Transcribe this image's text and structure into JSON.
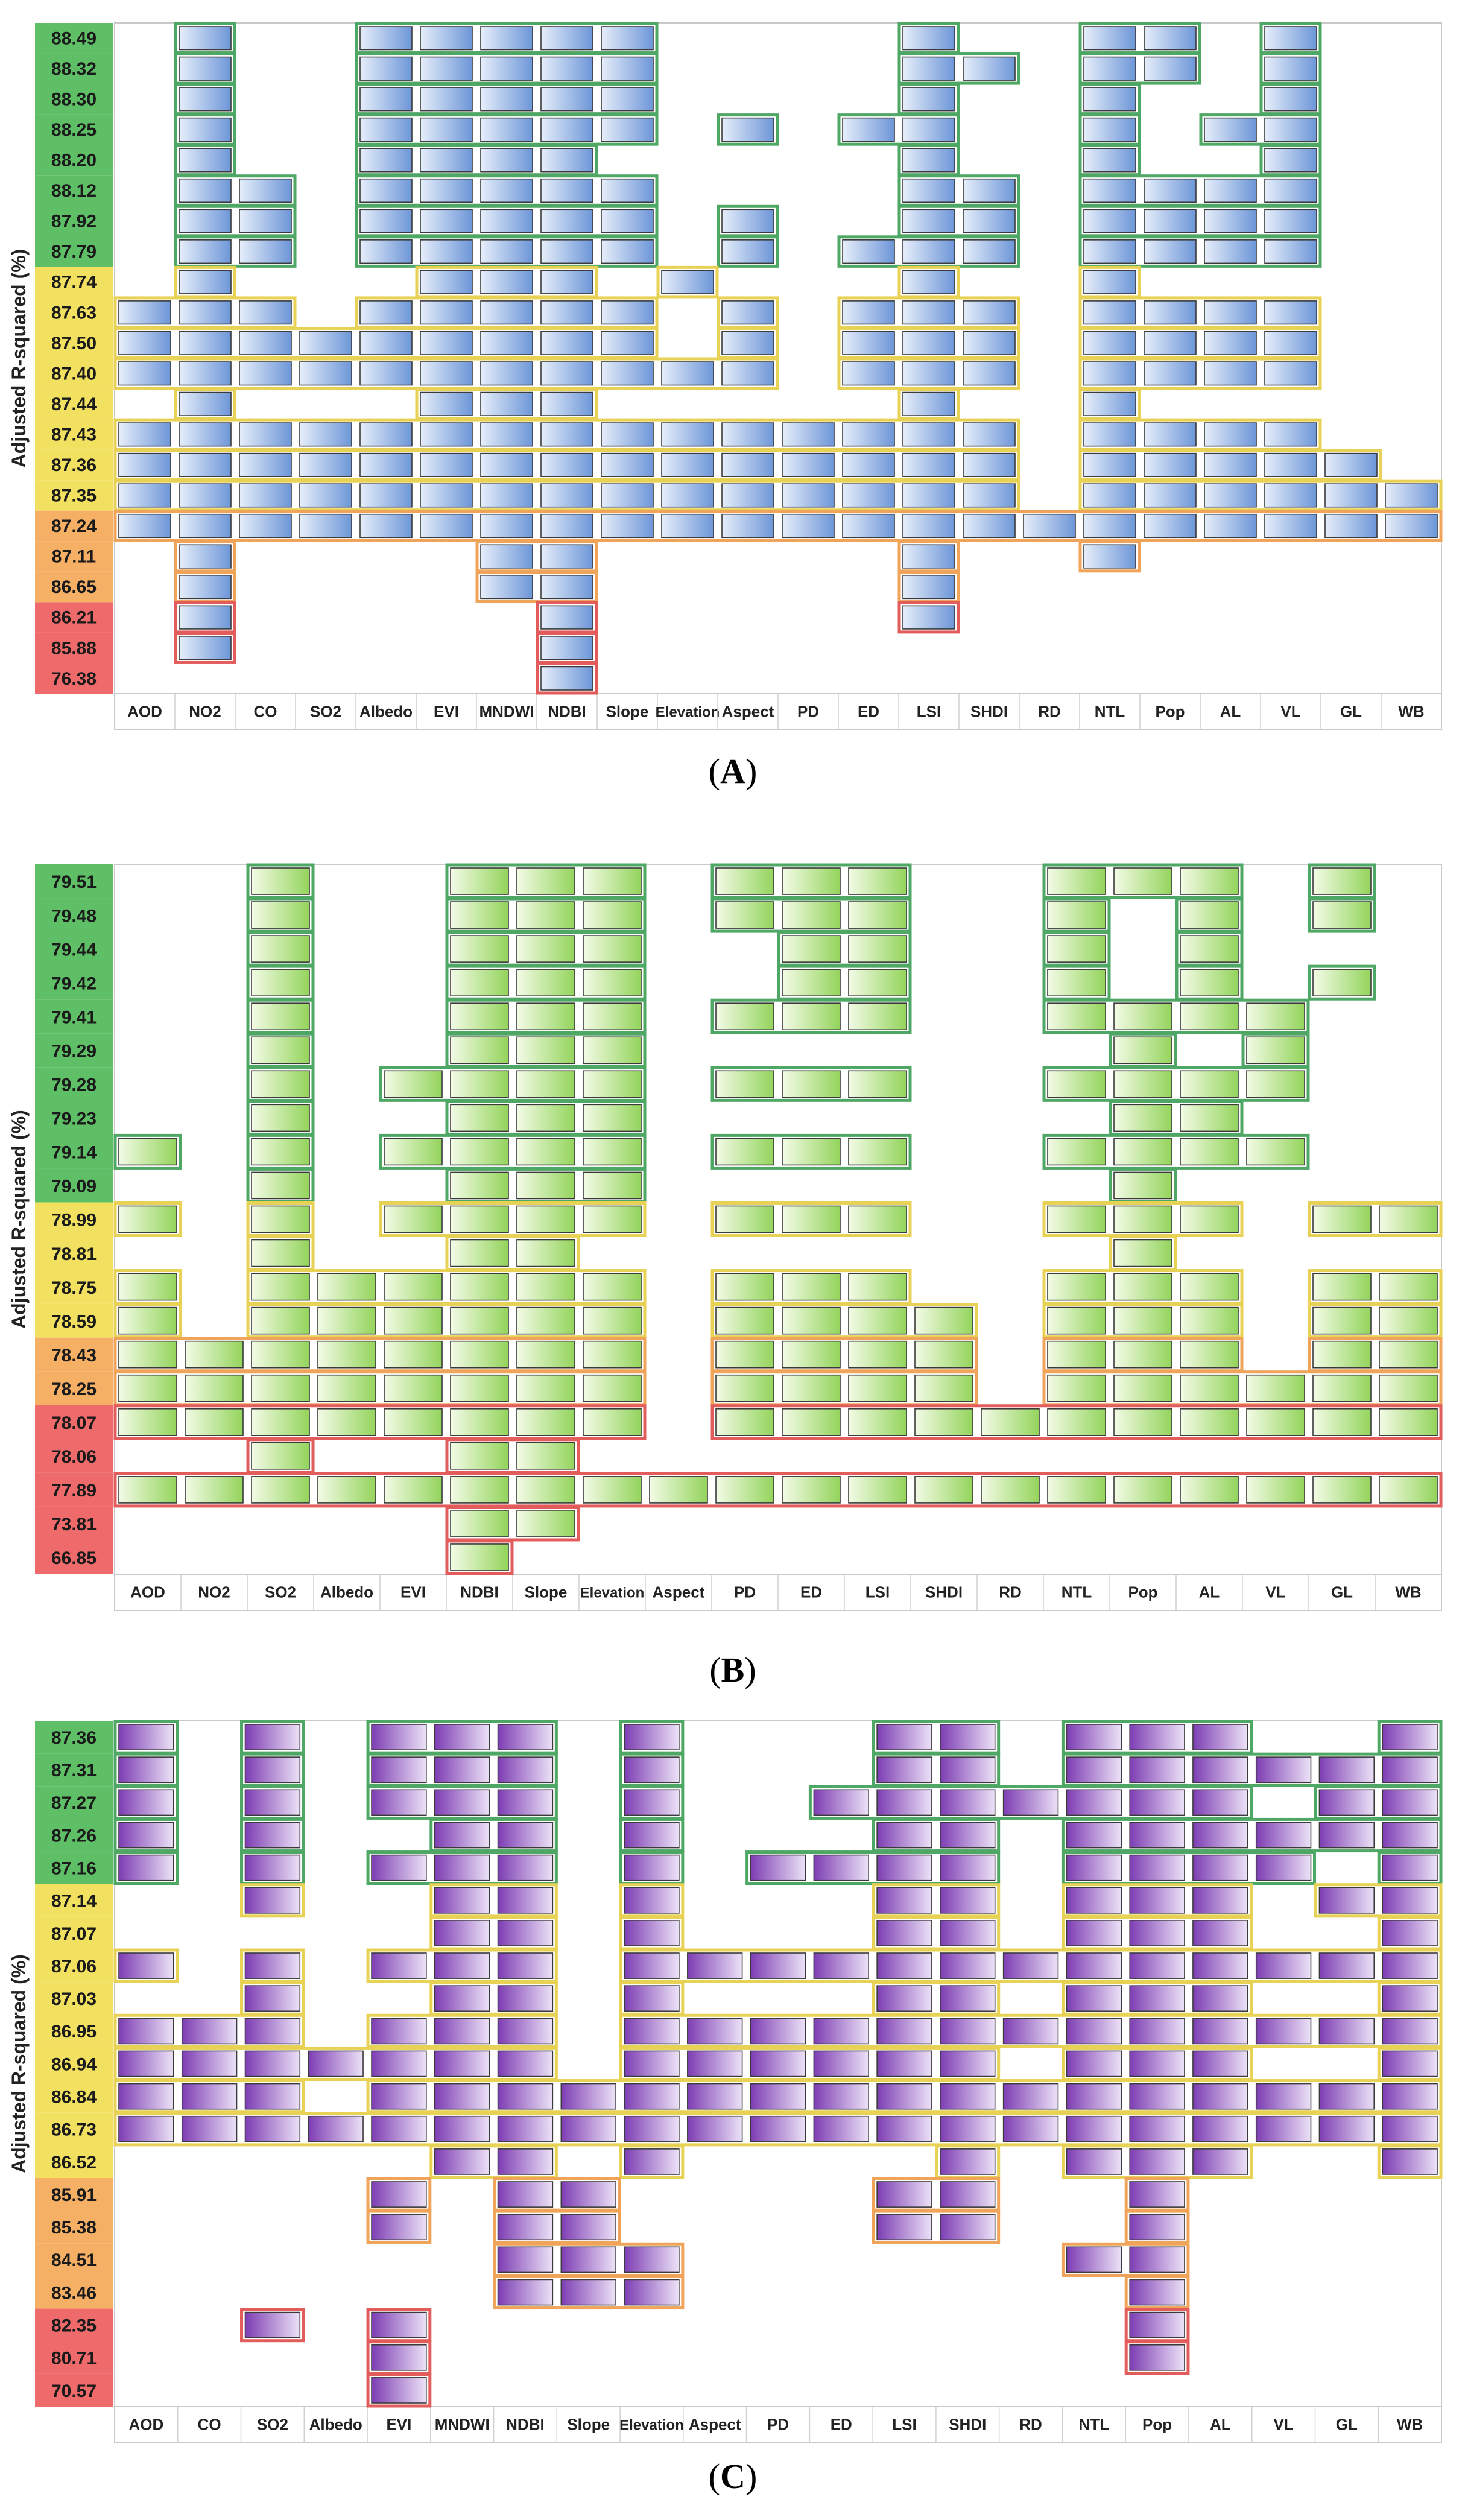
{
  "figure": {
    "ylabel": "Adjusted R-squared (%)",
    "panels": [
      "A",
      "B",
      "C"
    ]
  },
  "colors": {
    "axis_green": "#5fbf67",
    "axis_yellow": "#f2e160",
    "axis_orange": "#f6b066",
    "axis_red": "#ef6a6a",
    "cell_blue_light": "#e6eefa",
    "cell_blue_dark": "#6d96d8",
    "cell_green_light": "#f3fbe6",
    "cell_green_dark": "#94d45c",
    "cell_purple_light": "#ece2f7",
    "cell_purple_dark": "#7d3db3"
  },
  "chart_data": [
    {
      "type": "heatmap",
      "panel": "A",
      "title": "",
      "xlabel": "",
      "ylabel": "Adjusted R-squared (%)",
      "scheme": "blue",
      "categories": [
        "AOD",
        "NO2",
        "CO",
        "SO2",
        "Albedo",
        "EVI",
        "MNDWI",
        "NDBI",
        "Slope",
        "Elevation",
        "Aspect",
        "PD",
        "ED",
        "LSI",
        "SHDI",
        "RD",
        "NTL",
        "Pop",
        "AL",
        "VL",
        "GL",
        "WB"
      ],
      "rows": [
        "88.49",
        "88.32",
        "88.30",
        "88.25",
        "88.20",
        "88.12",
        "87.92",
        "87.79",
        "87.74",
        "87.63",
        "87.50",
        "87.40",
        "87.44",
        "87.43",
        "87.36",
        "87.35",
        "87.24",
        "87.11",
        "86.65",
        "86.21",
        "85.88",
        "76.38"
      ],
      "row_levels": [
        "green",
        "green",
        "green",
        "green",
        "green",
        "green",
        "green",
        "green",
        "yellow",
        "yellow",
        "yellow",
        "yellow",
        "yellow",
        "yellow",
        "yellow",
        "yellow",
        "orange",
        "orange",
        "orange",
        "red",
        "red",
        "red"
      ],
      "cells": [
        [
          1,
          4,
          5,
          6,
          7,
          8,
          13,
          16,
          17,
          19
        ],
        [
          1,
          4,
          5,
          6,
          7,
          8,
          13,
          14,
          16,
          17,
          19
        ],
        [
          1,
          4,
          5,
          6,
          7,
          8,
          13,
          16,
          19
        ],
        [
          1,
          4,
          5,
          6,
          7,
          8,
          10,
          12,
          13,
          16,
          18,
          19
        ],
        [
          1,
          4,
          5,
          6,
          7,
          13,
          16,
          19
        ],
        [
          1,
          2,
          4,
          5,
          6,
          7,
          8,
          13,
          14,
          16,
          17,
          18,
          19
        ],
        [
          1,
          2,
          4,
          5,
          6,
          7,
          8,
          10,
          13,
          14,
          16,
          17,
          18,
          19
        ],
        [
          1,
          2,
          4,
          5,
          6,
          7,
          8,
          10,
          12,
          13,
          14,
          16,
          17,
          18,
          19
        ],
        [
          1,
          5,
          6,
          7,
          9,
          13,
          16
        ],
        [
          0,
          1,
          2,
          4,
          5,
          6,
          7,
          8,
          10,
          12,
          13,
          14,
          16,
          17,
          18,
          19
        ],
        [
          0,
          1,
          2,
          3,
          4,
          5,
          6,
          7,
          8,
          10,
          12,
          13,
          14,
          16,
          17,
          18,
          19
        ],
        [
          0,
          1,
          2,
          3,
          4,
          5,
          6,
          7,
          8,
          9,
          10,
          12,
          13,
          14,
          16,
          17,
          18,
          19
        ],
        [
          1,
          5,
          6,
          7,
          13,
          16
        ],
        [
          0,
          1,
          2,
          3,
          4,
          5,
          6,
          7,
          8,
          9,
          10,
          11,
          12,
          13,
          14,
          16,
          17,
          18,
          19
        ],
        [
          0,
          1,
          2,
          3,
          4,
          5,
          6,
          7,
          8,
          9,
          10,
          11,
          12,
          13,
          14,
          16,
          17,
          18,
          19,
          20
        ],
        [
          0,
          1,
          2,
          3,
          4,
          5,
          6,
          7,
          8,
          9,
          10,
          11,
          12,
          13,
          14,
          16,
          17,
          18,
          19,
          20,
          21
        ],
        [
          0,
          1,
          2,
          3,
          4,
          5,
          6,
          7,
          8,
          9,
          10,
          11,
          12,
          13,
          14,
          15,
          16,
          17,
          18,
          19,
          20,
          21
        ],
        [
          1,
          6,
          7,
          13,
          16
        ],
        [
          1,
          6,
          7,
          13
        ],
        [
          1,
          7,
          13
        ],
        [
          1,
          7
        ],
        [
          7
        ]
      ]
    },
    {
      "type": "heatmap",
      "panel": "B",
      "title": "",
      "xlabel": "",
      "ylabel": "Adjusted R-squared (%)",
      "scheme": "green",
      "categories": [
        "AOD",
        "NO2",
        "SO2",
        "Albedo",
        "EVI",
        "NDBI",
        "Slope",
        "Elevation",
        "Aspect",
        "PD",
        "ED",
        "LSI",
        "SHDI",
        "RD",
        "NTL",
        "Pop",
        "AL",
        "VL",
        "GL",
        "WB"
      ],
      "rows": [
        "79.51",
        "79.48",
        "79.44",
        "79.42",
        "79.41",
        "79.29",
        "79.28",
        "79.23",
        "79.14",
        "79.09",
        "78.99",
        "78.81",
        "78.75",
        "78.59",
        "78.43",
        "78.25",
        "78.07",
        "78.06",
        "77.89",
        "73.81",
        "66.85"
      ],
      "row_levels": [
        "green",
        "green",
        "green",
        "green",
        "green",
        "green",
        "green",
        "green",
        "green",
        "green",
        "yellow",
        "yellow",
        "yellow",
        "yellow",
        "orange",
        "orange",
        "red",
        "red",
        "red",
        "red",
        "red"
      ],
      "cells": [
        [
          2,
          5,
          6,
          7,
          9,
          10,
          11,
          14,
          15,
          16,
          18
        ],
        [
          2,
          5,
          6,
          7,
          9,
          10,
          11,
          14,
          16,
          18
        ],
        [
          2,
          5,
          6,
          7,
          10,
          11,
          14,
          16
        ],
        [
          2,
          5,
          6,
          7,
          10,
          11,
          14,
          16,
          18
        ],
        [
          2,
          5,
          6,
          7,
          9,
          10,
          11,
          14,
          15,
          16,
          17
        ],
        [
          2,
          5,
          6,
          7,
          15,
          17
        ],
        [
          2,
          4,
          5,
          6,
          7,
          9,
          10,
          11,
          14,
          15,
          16,
          17
        ],
        [
          2,
          5,
          6,
          7,
          15,
          16
        ],
        [
          0,
          2,
          4,
          5,
          6,
          7,
          9,
          10,
          11,
          14,
          15,
          16,
          17
        ],
        [
          2,
          5,
          6,
          7,
          15
        ],
        [
          0,
          2,
          4,
          5,
          6,
          7,
          9,
          10,
          11,
          14,
          15,
          16,
          18,
          19
        ],
        [
          2,
          5,
          6,
          15
        ],
        [
          0,
          2,
          3,
          4,
          5,
          6,
          7,
          9,
          10,
          11,
          14,
          15,
          16,
          18,
          19
        ],
        [
          0,
          2,
          3,
          4,
          5,
          6,
          7,
          9,
          10,
          11,
          12,
          14,
          15,
          16,
          18,
          19
        ],
        [
          0,
          1,
          2,
          3,
          4,
          5,
          6,
          7,
          9,
          10,
          11,
          12,
          14,
          15,
          16,
          18,
          19
        ],
        [
          0,
          1,
          2,
          3,
          4,
          5,
          6,
          7,
          9,
          10,
          11,
          12,
          14,
          15,
          16,
          17,
          18,
          19
        ],
        [
          0,
          1,
          2,
          3,
          4,
          5,
          6,
          7,
          9,
          10,
          11,
          12,
          13,
          14,
          15,
          16,
          17,
          18,
          19
        ],
        [
          2,
          5,
          6
        ],
        [
          0,
          1,
          2,
          3,
          4,
          5,
          6,
          7,
          8,
          9,
          10,
          11,
          12,
          13,
          14,
          15,
          16,
          17,
          18,
          19
        ],
        [
          5,
          6
        ],
        [
          5
        ]
      ]
    },
    {
      "type": "heatmap",
      "panel": "C",
      "title": "",
      "xlabel": "",
      "ylabel": "Adjusted R-squared (%)",
      "scheme": "purple",
      "categories": [
        "AOD",
        "CO",
        "SO2",
        "Albedo",
        "EVI",
        "MNDWI",
        "NDBI",
        "Slope",
        "Elevation",
        "Aspect",
        "PD",
        "ED",
        "LSI",
        "SHDI",
        "RD",
        "NTL",
        "Pop",
        "AL",
        "VL",
        "GL",
        "WB"
      ],
      "rows": [
        "87.36",
        "87.31",
        "87.27",
        "87.26",
        "87.16",
        "87.14",
        "87.07",
        "87.06",
        "87.03",
        "86.95",
        "86.94",
        "86.84",
        "86.73",
        "86.52",
        "85.91",
        "85.38",
        "84.51",
        "83.46",
        "82.35",
        "80.71",
        "70.57"
      ],
      "row_levels": [
        "green",
        "green",
        "green",
        "green",
        "green",
        "yellow",
        "yellow",
        "yellow",
        "yellow",
        "yellow",
        "yellow",
        "yellow",
        "yellow",
        "yellow",
        "orange",
        "orange",
        "orange",
        "orange",
        "red",
        "red",
        "red"
      ],
      "cells": [
        [
          0,
          2,
          4,
          5,
          6,
          8,
          12,
          13,
          15,
          16,
          17,
          20
        ],
        [
          0,
          2,
          4,
          5,
          6,
          8,
          12,
          13,
          15,
          16,
          17,
          18,
          19,
          20
        ],
        [
          0,
          2,
          4,
          5,
          6,
          8,
          11,
          12,
          13,
          14,
          15,
          16,
          17,
          19,
          20
        ],
        [
          0,
          2,
          5,
          6,
          8,
          12,
          13,
          15,
          16,
          17,
          18,
          19,
          20
        ],
        [
          0,
          2,
          4,
          5,
          6,
          8,
          10,
          11,
          12,
          13,
          15,
          16,
          17,
          18,
          20
        ],
        [
          2,
          5,
          6,
          8,
          12,
          13,
          15,
          16,
          17,
          19,
          20
        ],
        [
          5,
          6,
          8,
          12,
          13,
          15,
          16,
          17,
          20
        ],
        [
          0,
          2,
          4,
          5,
          6,
          8,
          9,
          10,
          11,
          12,
          13,
          14,
          15,
          16,
          17,
          18,
          19,
          20
        ],
        [
          2,
          5,
          6,
          8,
          12,
          13,
          15,
          16,
          17,
          20
        ],
        [
          0,
          1,
          2,
          4,
          5,
          6,
          8,
          9,
          10,
          11,
          12,
          13,
          14,
          15,
          16,
          17,
          18,
          19,
          20
        ],
        [
          0,
          1,
          2,
          3,
          4,
          5,
          6,
          8,
          9,
          10,
          11,
          12,
          13,
          15,
          16,
          17,
          20
        ],
        [
          0,
          1,
          2,
          4,
          5,
          6,
          7,
          8,
          9,
          10,
          11,
          12,
          13,
          14,
          15,
          16,
          17,
          18,
          19,
          20
        ],
        [
          0,
          1,
          2,
          3,
          4,
          5,
          6,
          7,
          8,
          9,
          10,
          11,
          12,
          13,
          14,
          15,
          16,
          17,
          18,
          19,
          20
        ],
        [
          5,
          6,
          8,
          13,
          15,
          16,
          17,
          20
        ],
        [
          4,
          6,
          7,
          12,
          13,
          16
        ],
        [
          4,
          6,
          7,
          12,
          13,
          16
        ],
        [
          6,
          7,
          8,
          15,
          16
        ],
        [
          6,
          7,
          8,
          16
        ],
        [
          2,
          4,
          16
        ],
        [
          4,
          16
        ],
        [
          4
        ]
      ]
    }
  ]
}
